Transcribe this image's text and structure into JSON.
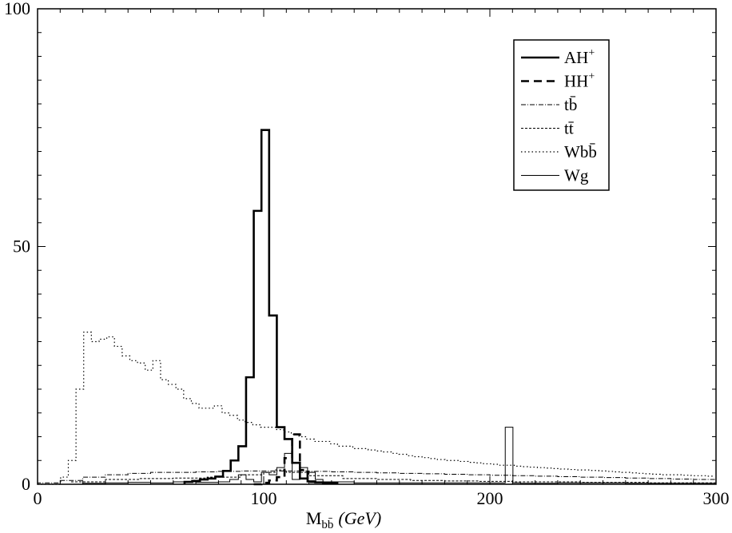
{
  "chart_data": {
    "type": "line",
    "title": "",
    "xlabel": {
      "main": "M",
      "subscript": "bb̄",
      "unit": "(GeV)"
    },
    "ylabel": "",
    "xlim": [
      0,
      300
    ],
    "ylim": [
      0,
      100
    ],
    "x_ticks": [
      "0",
      "100",
      "200",
      "300"
    ],
    "y_ticks": [
      "0",
      "50",
      "100"
    ],
    "grid": false,
    "legend_position": "top-right",
    "bin_width": 3.4,
    "series": [
      {
        "name": "AH+",
        "label_main": "AH",
        "label_sup": "+",
        "style": "thick-solid",
        "color": "#000000",
        "x": [
          65,
          68.4,
          71.8,
          75.2,
          78.6,
          82,
          85.4,
          88.8,
          92.2,
          95.6,
          99,
          102.4,
          105.8,
          109.2,
          112.6,
          116,
          119.4,
          122.8,
          126.2,
          129.6
        ],
        "y": [
          0.5,
          0.7,
          1,
          1.2,
          1.6,
          2.8,
          5,
          8,
          22.5,
          57.5,
          74.5,
          35.5,
          12,
          9.5,
          4.5,
          1.2,
          0.6,
          0.4,
          0.3,
          0.2
        ]
      },
      {
        "name": "HH+",
        "label_main": "HH",
        "label_sup": "+",
        "style": "thick-dashed",
        "color": "#000000",
        "x": [
          95.6,
          99,
          102.4,
          105.8,
          109.2,
          112.6,
          116,
          119.4
        ],
        "y": [
          0,
          0.3,
          0.8,
          1.5,
          5.5,
          10.5,
          3,
          0.5
        ]
      },
      {
        "name": "tb̄",
        "label_main": "tb̄",
        "style": "dash-dot",
        "color": "#000000",
        "x": [
          0,
          10,
          20,
          30,
          40,
          50,
          60,
          70,
          80,
          90,
          100,
          110,
          120,
          130,
          140,
          150,
          160,
          170,
          180,
          190,
          200,
          210,
          220,
          230,
          240,
          250,
          260,
          270,
          280,
          290,
          300
        ],
        "y": [
          0.3,
          0.8,
          1.5,
          2,
          2.3,
          2.5,
          2.5,
          2.6,
          2.7,
          2.8,
          2.8,
          2.8,
          2.7,
          2.6,
          2.5,
          2.4,
          2.3,
          2.2,
          2.1,
          2,
          1.9,
          1.8,
          1.7,
          1.6,
          1.5,
          1.4,
          1.3,
          1.2,
          1.1,
          1,
          1
        ]
      },
      {
        "name": "tt̄",
        "label_main": "tt̄",
        "style": "dashed",
        "color": "#000000",
        "x": [
          0,
          15,
          30,
          45,
          60,
          75,
          90,
          100,
          105,
          110,
          120,
          135,
          150,
          165,
          180,
          195,
          210,
          225,
          240,
          255,
          270,
          285,
          300
        ],
        "y": [
          0,
          0.5,
          1,
          1.2,
          1.3,
          1.5,
          2,
          2.5,
          3,
          2.5,
          1.8,
          1.2,
          1,
          0.8,
          0.7,
          0.6,
          0.5,
          0.5,
          0.4,
          0.4,
          0.3,
          0.3,
          0.3
        ]
      },
      {
        "name": "Wbb̄",
        "label_main": "Wbb̄",
        "style": "dotted",
        "color": "#000000",
        "x": [
          0,
          10.2,
          13.6,
          17,
          20.4,
          23.8,
          27.2,
          30.6,
          34,
          37.4,
          40.8,
          44.2,
          47.6,
          51,
          54.4,
          57.8,
          61.2,
          64.6,
          68,
          71.4,
          74.8,
          78.2,
          81.6,
          85,
          88.4,
          91.8,
          95.2,
          98.6,
          102,
          105.4,
          108.8,
          112.2,
          115.6,
          119,
          122.4,
          125.8,
          129.2,
          132.6,
          136,
          139.4,
          142.8,
          146.2,
          149.6,
          153,
          156.4,
          159.8,
          163.2,
          166.6,
          170,
          173.4,
          176.8,
          180.2,
          183.6,
          187,
          190.4,
          193.8,
          197.2,
          200.6,
          204,
          207.4,
          210.8,
          214.2,
          217.6,
          221,
          224.4,
          227.8,
          231.2,
          234.6,
          238,
          241.4,
          244.8,
          248.2,
          251.6,
          255,
          258.4,
          261.8,
          265.2,
          268.6,
          272,
          275.4,
          278.8,
          282.2,
          285.6,
          289,
          292.4,
          295.8
        ],
        "y": [
          0,
          1.5,
          5,
          20,
          32,
          30,
          30.5,
          31,
          29,
          27,
          26,
          25.5,
          24,
          26,
          22,
          21,
          20,
          18,
          17,
          16,
          16,
          16.5,
          15,
          14.5,
          13.5,
          13,
          12.5,
          12,
          12,
          11.5,
          11,
          10.5,
          10,
          9.5,
          9,
          9,
          8.5,
          8,
          8,
          7.5,
          7.5,
          7.2,
          7,
          6.8,
          6.5,
          6.3,
          6,
          5.8,
          5.6,
          5.4,
          5.2,
          5,
          5,
          4.8,
          4.6,
          4.5,
          4.3,
          4.2,
          4,
          4,
          3.8,
          3.7,
          3.6,
          3.5,
          3.4,
          3.3,
          3.2,
          3.1,
          3,
          3,
          2.9,
          2.8,
          2.7,
          2.6,
          2.5,
          2.4,
          2.3,
          2.2,
          2.1,
          2,
          2,
          2,
          1.9,
          1.8,
          1.8,
          1.7
        ]
      },
      {
        "name": "Wg",
        "label_main": "Wg",
        "style": "thin-solid",
        "color": "#000000",
        "x": [
          0,
          10,
          20,
          30,
          40,
          50,
          60,
          70,
          80,
          85,
          88.8,
          92.2,
          95.6,
          99,
          102.4,
          105.8,
          109.2,
          112.6,
          116,
          119.4,
          122.8,
          126.2,
          140,
          170,
          200,
          203.4,
          206.8,
          210.2,
          213.6,
          230,
          260,
          300
        ],
        "y": [
          0,
          0,
          0.2,
          0.3,
          0.4,
          0.3,
          0.5,
          0.4,
          0.5,
          1,
          2,
          1,
          0.5,
          2.5,
          2,
          3.5,
          6.5,
          1,
          3.5,
          2.5,
          1,
          0.5,
          0.3,
          0.3,
          0.3,
          0.3,
          12,
          0.3,
          0.2,
          0.3,
          0.2,
          0.2
        ]
      }
    ]
  }
}
